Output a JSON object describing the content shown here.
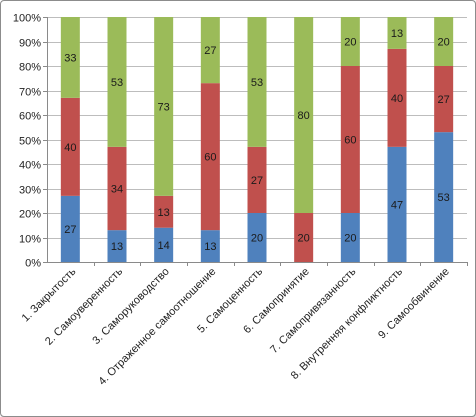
{
  "chart_data": {
    "type": "bar",
    "stacked": true,
    "percent_stacked": true,
    "title": "",
    "xlabel": "",
    "ylabel": "",
    "ylim": [
      0,
      100
    ],
    "yticks": [
      "0%",
      "10%",
      "20%",
      "30%",
      "40%",
      "50%",
      "60%",
      "70%",
      "80%",
      "90%",
      "100%"
    ],
    "grid": true,
    "legend": "none",
    "categories": [
      "1. Закрытость",
      "2. Самоуверенность",
      "3. Саморуководство",
      "4. Отраженное самоотношение",
      "5. Самоценность",
      "6. Самопринятие",
      "7. Самопривязанность",
      "8. Внутренняя конфликтность",
      "9. Самообвинение"
    ],
    "series": [
      {
        "color": "#4f81bd",
        "values": [
          27,
          13,
          14,
          13,
          20,
          0,
          20,
          47,
          53
        ],
        "labels": [
          "27",
          "13",
          "14",
          "13",
          "20",
          "",
          "20",
          "47",
          "53"
        ]
      },
      {
        "color": "#c0504d",
        "values": [
          40,
          34,
          13,
          60,
          27,
          20,
          60,
          40,
          27
        ],
        "labels": [
          "40",
          "34",
          "13",
          "60",
          "27",
          "20",
          "60",
          "40",
          "27"
        ]
      },
      {
        "color": "#9bbb59",
        "values": [
          33,
          53,
          73,
          27,
          53,
          80,
          20,
          13,
          20
        ],
        "labels": [
          "33",
          "53",
          "73",
          "27",
          "53",
          "80",
          "20",
          "13",
          "20"
        ]
      }
    ]
  }
}
